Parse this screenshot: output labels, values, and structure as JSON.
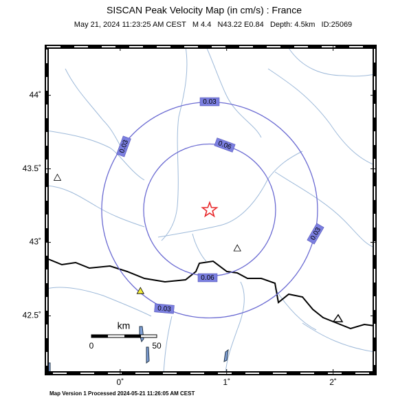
{
  "header": {
    "title": "SISCAN Peak Velocity Map (in cm/s) : France",
    "subtitle": "May 21, 2024 11:23:25 AM CEST   M 4.4   N43.22 E0.84   Depth: 4.5km   ID:25069"
  },
  "map": {
    "lonlim": [
      -0.69,
      2.39
    ],
    "latlim": [
      42.11,
      44.33
    ],
    "lat_ticks": [
      {
        "value": 44,
        "label": "44˚"
      },
      {
        "value": 43.5,
        "label": "43.5˚"
      },
      {
        "value": 43,
        "label": "43˚"
      },
      {
        "value": 42.5,
        "label": "42.5˚"
      }
    ],
    "lon_ticks": [
      {
        "value": 0,
        "label": "0˚"
      },
      {
        "value": 1,
        "label": "1˚"
      },
      {
        "value": 2,
        "label": "2˚"
      }
    ],
    "contours": [
      0.03,
      0.06
    ],
    "epicenter": {
      "lon": 0.84,
      "lat": 43.22,
      "color": "#e8272a"
    },
    "stations": [
      {
        "lon": -0.59,
        "lat": 43.44,
        "color": "#ffffff"
      },
      {
        "lon": 1.1,
        "lat": 42.96,
        "color": "#ffffff"
      },
      {
        "lon": 0.19,
        "lat": 42.67,
        "color": "#f5ef3a"
      }
    ],
    "scale_bar": {
      "unit": "km",
      "labels": [
        "0",
        "50"
      ]
    }
  },
  "footer": "Map Version 1 Processed 2024-05-21 11:26:05 AM CEST"
}
